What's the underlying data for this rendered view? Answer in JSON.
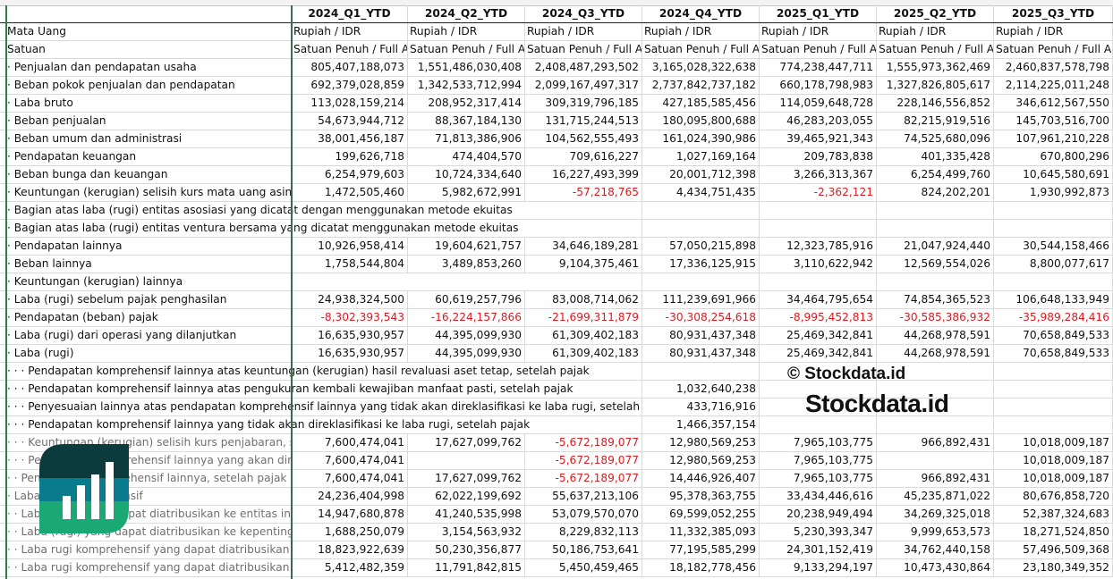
{
  "columns": [
    "2024_Q1_YTD",
    "2024_Q2_YTD",
    "2024_Q3_YTD",
    "2024_Q4_YTD",
    "2025_Q1_YTD",
    "2025_Q2_YTD",
    "2025_Q3_YTD"
  ],
  "meta_rows": [
    {
      "label": "Mata Uang",
      "values": [
        "Rupiah / IDR",
        "Rupiah / IDR",
        "Rupiah / IDR",
        "Rupiah / IDR",
        "Rupiah / IDR",
        "Rupiah / IDR",
        "Rupiah / IDR"
      ]
    },
    {
      "label": "Satuan",
      "values": [
        "Satuan Penuh / Full Amount",
        "Satuan Penuh / Full Amount",
        "Satuan Penuh / Full Amount",
        "Satuan Penuh / Full Amount",
        "Satuan Penuh / Full Amount",
        "Satuan Penuh / Full Amount",
        "Satuan Penuh / Full Amount"
      ]
    }
  ],
  "rows": [
    {
      "label": "· Penjualan dan pendapatan usaha",
      "values": [
        "805,407,188,073",
        "1,551,486,030,408",
        "2,408,487,293,502",
        "3,165,028,322,638",
        "774,238,447,711",
        "1,555,973,362,469",
        "2,460,837,578,798"
      ]
    },
    {
      "label": "· Beban pokok penjualan dan pendapatan",
      "values": [
        "692,379,028,859",
        "1,342,533,712,994",
        "2,099,167,497,317",
        "2,737,842,737,182",
        "660,178,798,983",
        "1,327,826,805,617",
        "2,114,225,011,248"
      ]
    },
    {
      "label": "· Laba bruto",
      "values": [
        "113,028,159,214",
        "208,952,317,414",
        "309,319,796,185",
        "427,185,585,456",
        "114,059,648,728",
        "228,146,556,852",
        "346,612,567,550"
      ]
    },
    {
      "label": "· Beban penjualan",
      "values": [
        "54,673,944,712",
        "88,367,184,130",
        "131,715,244,513",
        "180,095,800,688",
        "46,283,203,055",
        "82,215,919,516",
        "145,703,516,700"
      ]
    },
    {
      "label": "· Beban umum dan administrasi",
      "values": [
        "38,001,456,187",
        "71,813,386,906",
        "104,562,555,493",
        "161,024,390,986",
        "39,465,921,343",
        "74,525,680,096",
        "107,961,210,228"
      ]
    },
    {
      "label": "· Pendapatan keuangan",
      "values": [
        "199,626,718",
        "474,404,570",
        "709,616,227",
        "1,027,169,164",
        "209,783,838",
        "401,335,428",
        "670,800,296"
      ]
    },
    {
      "label": "· Beban bunga dan keuangan",
      "values": [
        "6,254,979,603",
        "10,724,334,640",
        "16,227,493,399",
        "20,001,712,398",
        "3,266,313,367",
        "6,254,499,760",
        "10,645,580,691"
      ]
    },
    {
      "label": "· Keuntungan (kerugian) selisih kurs mata uang asing",
      "values": [
        "1,472,505,460",
        "5,982,672,991",
        "-57,218,765",
        "4,434,751,435",
        "-2,362,121",
        "824,202,201",
        "1,930,992,873"
      ]
    },
    {
      "label": "· Bagian atas laba (rugi) entitas asosiasi yang dicatat dengan menggunakan metode ekuitas",
      "values": [
        "",
        "",
        "",
        "",
        "",
        "",
        ""
      ]
    },
    {
      "label": "· Bagian atas laba (rugi) entitas ventura bersama yang dicatat menggunakan metode ekuitas",
      "values": [
        "",
        "",
        "",
        "",
        "",
        "",
        ""
      ]
    },
    {
      "label": "· Pendapatan lainnya",
      "values": [
        "10,926,958,414",
        "19,604,621,757",
        "34,646,189,281",
        "57,050,215,898",
        "12,323,785,916",
        "21,047,924,440",
        "30,544,158,466"
      ]
    },
    {
      "label": "· Beban lainnya",
      "values": [
        "1,758,544,804",
        "3,489,853,260",
        "9,104,375,461",
        "17,336,125,915",
        "3,110,622,942",
        "12,569,554,026",
        "8,800,077,617"
      ]
    },
    {
      "label": "· Keuntungan (kerugian) lainnya",
      "values": [
        "",
        "",
        "",
        "",
        "",
        "",
        ""
      ]
    },
    {
      "label": "· Laba (rugi) sebelum pajak penghasilan",
      "values": [
        "24,938,324,500",
        "60,619,257,796",
        "83,008,714,062",
        "111,239,691,966",
        "34,464,795,654",
        "74,854,365,523",
        "106,648,133,949"
      ]
    },
    {
      "label": "· Pendapatan (beban) pajak",
      "values": [
        "-8,302,393,543",
        "-16,224,157,866",
        "-21,699,311,879",
        "-30,308,254,618",
        "-8,995,452,813",
        "-30,585,386,932",
        "-35,989,284,416"
      ]
    },
    {
      "label": "· Laba (rugi) dari operasi yang dilanjutkan",
      "values": [
        "16,635,930,957",
        "44,395,099,930",
        "61,309,402,183",
        "80,931,437,348",
        "25,469,342,841",
        "44,268,978,591",
        "70,658,849,533"
      ]
    },
    {
      "label": "· Laba (rugi)",
      "values": [
        "16,635,930,957",
        "44,395,099,930",
        "61,309,402,183",
        "80,931,437,348",
        "25,469,342,841",
        "44,268,978,591",
        "70,658,849,533"
      ]
    },
    {
      "label": "· · · Pendapatan komprehensif lainnya atas keuntungan (kerugian) hasil revaluasi aset tetap, setelah pajak",
      "values": [
        "",
        "",
        "",
        "",
        "",
        "",
        ""
      ]
    },
    {
      "label": "· · · Pendapatan komprehensif lainnya atas pengukuran kembali kewajiban manfaat pasti, setelah pajak",
      "values": [
        "",
        "",
        "",
        "1,032,640,238",
        "",
        "",
        ""
      ]
    },
    {
      "label": "· · · Penyesuaian lainnya atas pendapatan komprehensif lainnya yang tidak akan direklasifikasi ke laba rugi, setelah pajak",
      "values": [
        "",
        "",
        "",
        "433,716,916",
        "",
        "",
        ""
      ]
    },
    {
      "label": "· · · Pendapatan komprehensif lainnya yang tidak akan direklasifikasi ke laba rugi, setelah pajak",
      "values": [
        "",
        "",
        "",
        "1,466,357,154",
        "",
        "",
        ""
      ]
    },
    {
      "label": "· · · Keuntungan (kerugian) selisih kurs penjabaran, setelah pajak",
      "muted": true,
      "values": [
        "7,600,474,041",
        "17,627,099,762",
        "-5,672,189,077",
        "12,980,569,253",
        "7,965,103,775",
        "966,892,431",
        "10,018,009,187"
      ]
    },
    {
      "label": "· · · Pendapatan komprehensif lainnya yang akan direklasifikasi ke laba rugi, setelah pajak",
      "muted": true,
      "values": [
        "7,600,474,041",
        "",
        "-5,672,189,077",
        "12,980,569,253",
        "7,965,103,775",
        "",
        "10,018,009,187"
      ]
    },
    {
      "label": "· · Pendapatan komprehensif lainnya, setelah pajak",
      "muted": true,
      "values": [
        "7,600,474,041",
        "17,627,099,762",
        "-5,672,189,077",
        "14,446,926,407",
        "7,965,103,775",
        "966,892,431",
        "10,018,009,187"
      ]
    },
    {
      "label": "· Laba rugi komprehensif",
      "muted": true,
      "values": [
        "24,236,404,998",
        "62,022,199,692",
        "55,637,213,106",
        "95,378,363,755",
        "33,434,446,616",
        "45,235,871,022",
        "80,676,858,720"
      ]
    },
    {
      "label": "· · Laba (rugi) yang dapat diatribusikan ke entitas induk",
      "muted": true,
      "values": [
        "14,947,680,878",
        "41,240,535,998",
        "53,079,570,070",
        "69,599,052,255",
        "20,238,949,494",
        "34,269,325,018",
        "52,387,324,683"
      ]
    },
    {
      "label": "· · Laba (rugi) yang dapat diatribusikan ke kepentingan non-pengendali",
      "muted": true,
      "values": [
        "1,688,250,079",
        "3,154,563,932",
        "8,229,832,113",
        "11,332,385,093",
        "5,230,393,347",
        "9,999,653,573",
        "18,271,524,850"
      ]
    },
    {
      "label": "· · Laba rugi komprehensif yang dapat diatribusikan ke entitas induk",
      "muted": true,
      "values": [
        "18,823,922,639",
        "50,230,356,877",
        "50,186,753,641",
        "77,195,585,299",
        "24,301,152,419",
        "34,762,440,158",
        "57,496,509,368"
      ]
    },
    {
      "label": "· · Laba rugi komprehensif yang dapat diatribusikan ke kepentingan non-pengendali",
      "muted": true,
      "values": [
        "5,412,482,359",
        "11,791,842,815",
        "5,450,459,465",
        "18,182,778,456",
        "9,133,294,197",
        "10,473,430,864",
        "23,180,349,352"
      ]
    }
  ],
  "watermark": {
    "copyright": "© Stockdata.id",
    "brand": "Stockdata.id"
  },
  "colors": {
    "negative": "#e0191e",
    "logo_dark": "#0b3b3c",
    "logo_mid": "#0a7b8c",
    "logo_green": "#1aa874"
  }
}
